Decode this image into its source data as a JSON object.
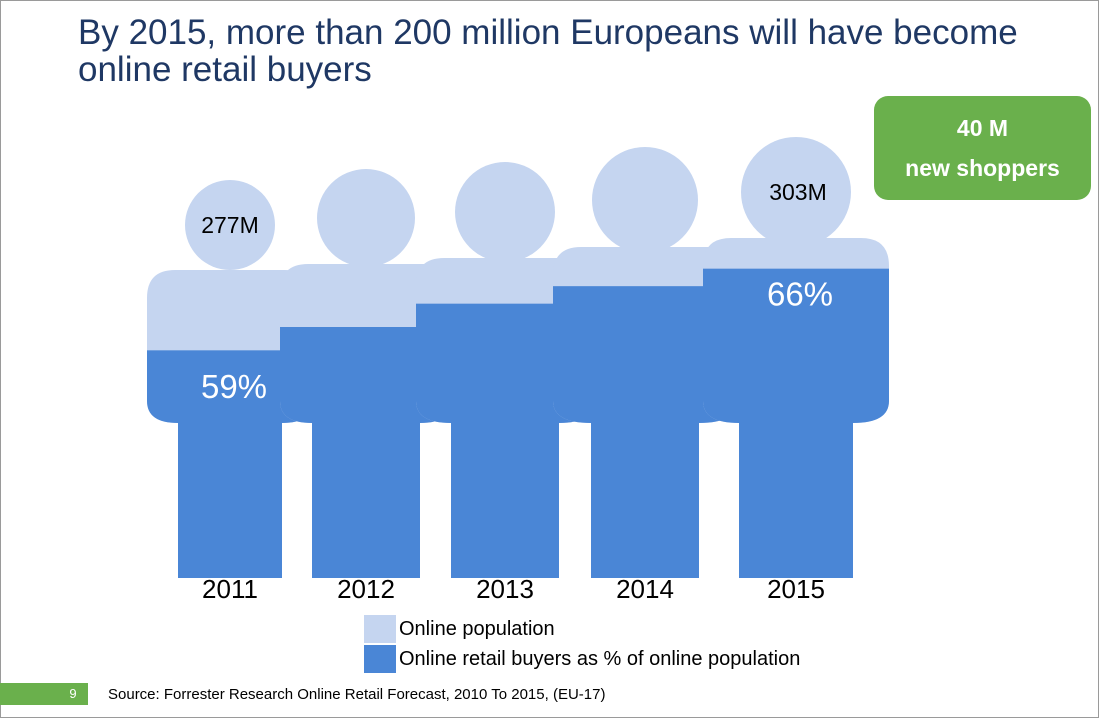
{
  "slide": {
    "title": "By 2015, more than 200 million Europeans will have become online retail buyers",
    "callout_line1": "40 M",
    "callout_line2": "new shoppers",
    "page_number": "9",
    "source": "Source: Forrester Research Online Retail Forecast, 2010 To 2015, (EU-17)"
  },
  "colors": {
    "online_population": "#c5d5f0",
    "retail_buyers": "#4a86d6",
    "callout": "#6ab04c",
    "title": "#1f3864"
  },
  "chart_data": {
    "type": "bar",
    "title": "",
    "categories": [
      "2011",
      "2012",
      "2013",
      "2014",
      "2015"
    ],
    "series": [
      {
        "name": "Online population",
        "values": [
          277,
          null,
          null,
          null,
          303
        ]
      },
      {
        "name": "Online retail buyers as % of online population",
        "values": [
          59,
          61,
          63,
          64.5,
          66
        ]
      }
    ],
    "population_labels": [
      "277M",
      "",
      "",
      "",
      "303M"
    ],
    "percent_labels": [
      "59%",
      "",
      "",
      "",
      "66%"
    ],
    "legend": [
      "Online population",
      "Online retail buyers as % of online population"
    ],
    "legend_position": "bottom"
  }
}
